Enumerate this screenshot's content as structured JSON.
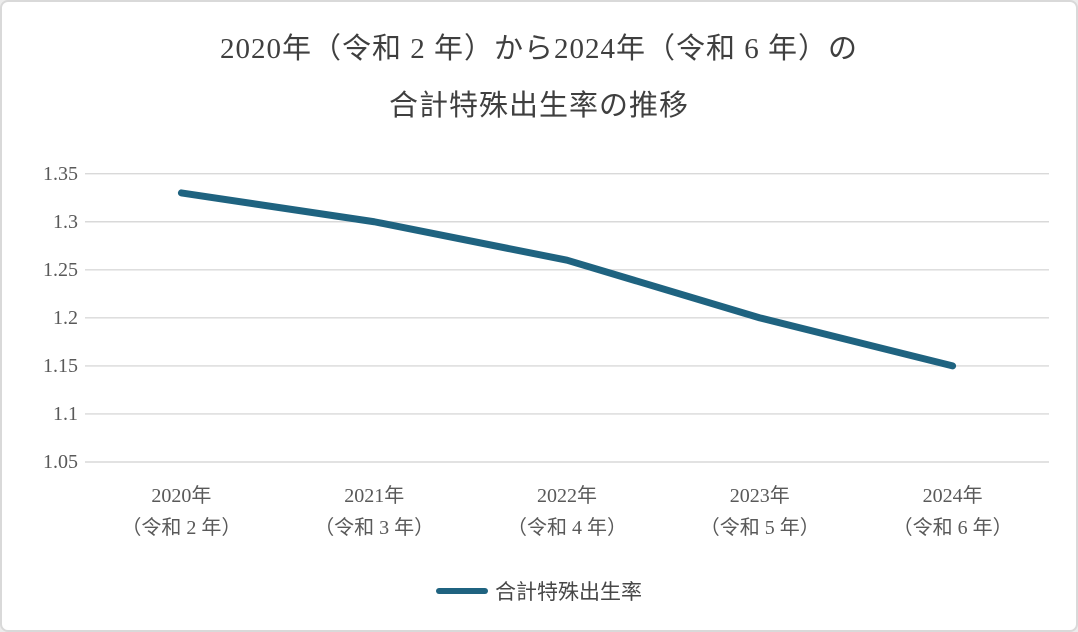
{
  "title": {
    "line1": "2020年（令和 2 年）から2024年（令和 6 年）の",
    "line2": "合計特殊出生率の推移"
  },
  "legend": {
    "label": "合計特殊出生率",
    "swatch_color": "#1f6380",
    "position": "bottom-center"
  },
  "colors": {
    "line": "#1f6380",
    "gridline": "#d9d9d9",
    "title_text": "#3f3f3f",
    "axis_text": "#595959",
    "card_background": "#ffffff",
    "card_border": "#d9d9d9"
  },
  "chart_data": {
    "type": "line",
    "title": "2020年（令和 2 年）から2024年（令和 6 年）の合計特殊出生率の推移",
    "categories": [
      {
        "year": "2020年",
        "era": "（令和 2 年）"
      },
      {
        "year": "2021年",
        "era": "（令和 3 年）"
      },
      {
        "year": "2022年",
        "era": "（令和 4 年）"
      },
      {
        "year": "2023年",
        "era": "（令和 5 年）"
      },
      {
        "year": "2024年",
        "era": "（令和 6 年）"
      }
    ],
    "series": [
      {
        "name": "合計特殊出生率",
        "values": [
          1.33,
          1.3,
          1.26,
          1.2,
          1.15
        ],
        "color": "#1f6380"
      }
    ],
    "xlabel": "",
    "ylabel": "",
    "ylim": [
      1.05,
      1.35
    ],
    "ytick_step": 0.05,
    "yticks": [
      {
        "value": 1.35,
        "label": "1.35"
      },
      {
        "value": 1.3,
        "label": "1.3"
      },
      {
        "value": 1.25,
        "label": "1.25"
      },
      {
        "value": 1.2,
        "label": "1.2"
      },
      {
        "value": 1.15,
        "label": "1.15"
      },
      {
        "value": 1.1,
        "label": "1.1"
      },
      {
        "value": 1.05,
        "label": "1.05"
      }
    ],
    "grid": "horizontal",
    "legend_position": "bottom-center"
  }
}
